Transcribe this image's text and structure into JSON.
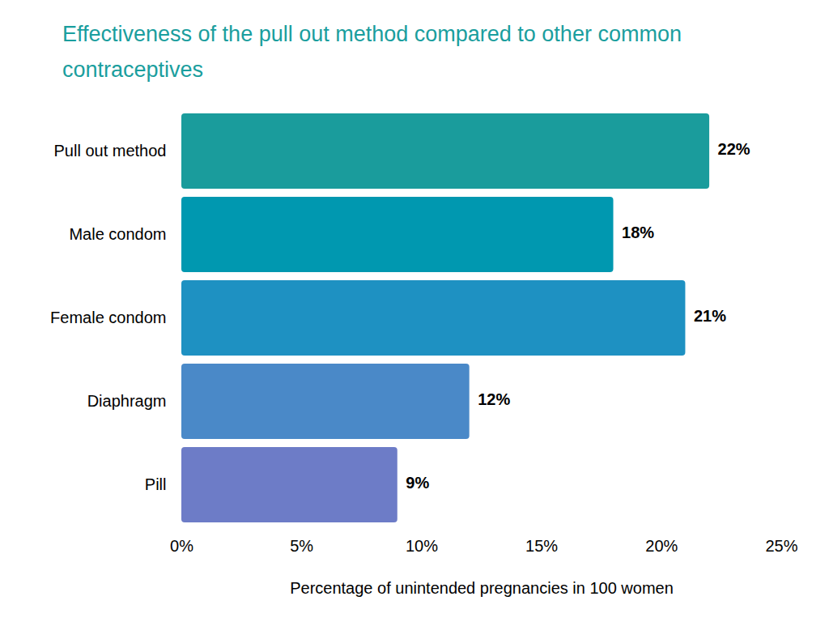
{
  "chart_data": {
    "type": "bar",
    "orientation": "horizontal",
    "title": "Effectiveness of the pull out method compared to other common contraceptives",
    "xlabel": "Percentage of unintended pregnancies in 100 women",
    "categories": [
      "Pull out method",
      "Male condom",
      "Female condom",
      "Diaphragm",
      "Pill"
    ],
    "values": [
      22,
      18,
      21,
      12,
      9
    ],
    "value_labels": [
      "22%",
      "18%",
      "21%",
      "12%",
      "9%"
    ],
    "colors": [
      "#1a9c9c",
      "#0098b0",
      "#1e91c2",
      "#4a89c8",
      "#6d7cc7"
    ],
    "xlim": [
      0,
      25
    ],
    "xticks": [
      {
        "value": 0,
        "label": "0%"
      },
      {
        "value": 5,
        "label": "5%"
      },
      {
        "value": 10,
        "label": "10%"
      },
      {
        "value": 15,
        "label": "15%"
      },
      {
        "value": 20,
        "label": "20%"
      },
      {
        "value": 25,
        "label": "25%"
      }
    ],
    "grid": false,
    "data_labels": true
  }
}
